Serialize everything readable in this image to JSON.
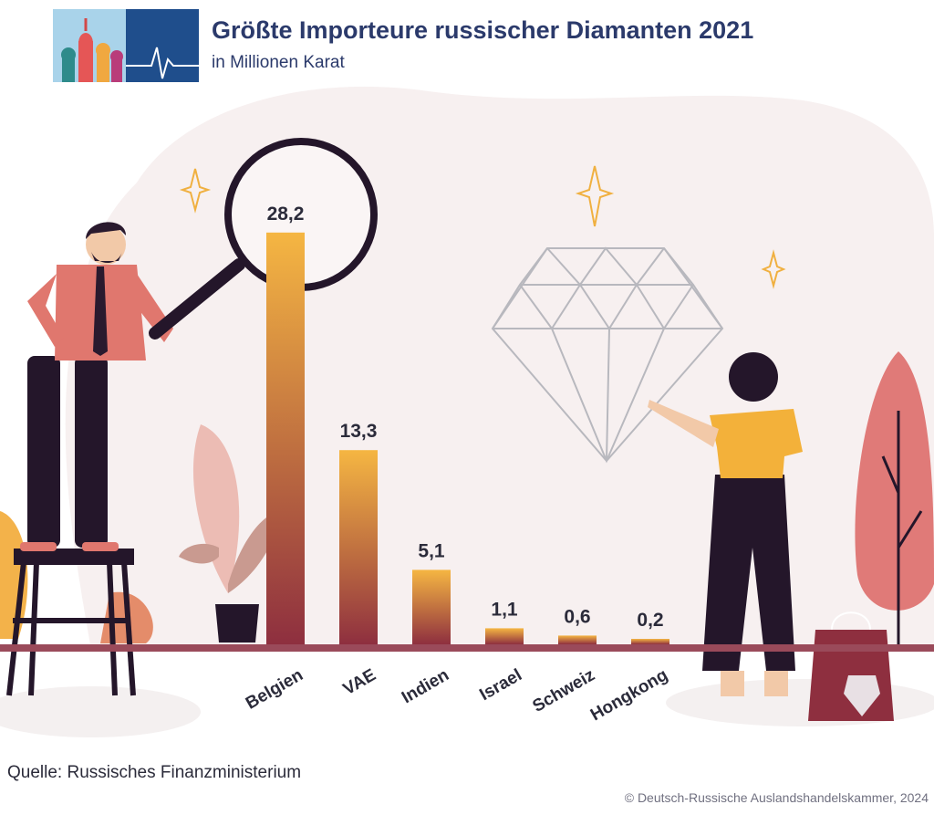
{
  "header": {
    "title": "Größte Importeure russischer Diamanten 2021",
    "subtitle": "in Millionen Karat"
  },
  "chart_data": {
    "type": "bar",
    "categories": [
      "Belgien",
      "VAE",
      "Indien",
      "Israel",
      "Schweiz",
      "Hongkong"
    ],
    "values": [
      28.2,
      13.3,
      5.1,
      1.1,
      0.6,
      0.2
    ],
    "value_labels": [
      "28,2",
      "13,3",
      "5,1",
      "1,1",
      "0,6",
      "0,2"
    ],
    "ylim": [
      0,
      30
    ],
    "grid": false,
    "legend": "none",
    "title": "Größte Importeure russischer Diamanten 2021",
    "subtitle": "in Millionen Karat"
  },
  "footer": {
    "source": "Quelle: Russisches Finanzministerium",
    "copyright": "© Deutsch-Russische Auslandshandelskammer, 2024"
  },
  "colors": {
    "bar_top": "#f5b642",
    "bar_bottom": "#8e2f3f",
    "baseline": "#9a4a5a",
    "title": "#2b3a6b",
    "logo_bg": "#1f4e8c"
  },
  "icons": [
    "kremlin-logo-icon",
    "magnifier-icon",
    "diamond-icon",
    "sparkle-icon",
    "plant-icon",
    "tree-icon",
    "shopping-bag-icon",
    "ladder-icon",
    "man-figure-icon",
    "woman-figure-icon"
  ]
}
